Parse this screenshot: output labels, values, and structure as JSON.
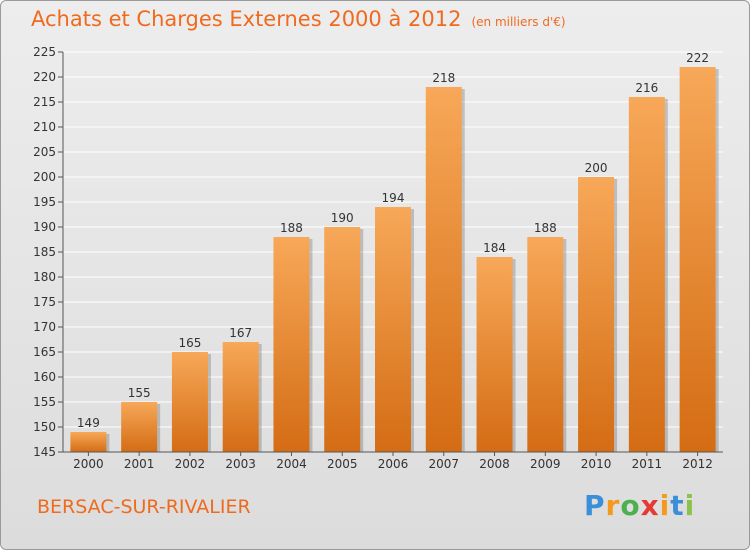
{
  "header": {
    "title": "Achats et Charges Externes 2000 à 2012",
    "subtitle": "(en milliers d'€)"
  },
  "footer": {
    "place": "BERSAC-SUR-RIVALIER",
    "logo": [
      "P",
      "r",
      "o",
      "x",
      "i",
      "t",
      "i"
    ]
  },
  "colors": {
    "accent": "#f06a1e",
    "bar_top": "#f7a858",
    "bar_bottom": "#d46c14",
    "logo": [
      "#3a8fd8",
      "#f39a1e",
      "#4caf50",
      "#e53935",
      "#f39a1e",
      "#3a8fd8",
      "#8bc34a"
    ]
  },
  "chart_data": {
    "type": "bar",
    "title": "Achats et Charges Externes 2000 à 2012",
    "subtitle": "(en milliers d'€)",
    "xlabel": "",
    "ylabel": "",
    "categories": [
      "2000",
      "2001",
      "2002",
      "2003",
      "2004",
      "2005",
      "2006",
      "2007",
      "2008",
      "2009",
      "2010",
      "2011",
      "2012"
    ],
    "values": [
      149,
      155,
      165,
      167,
      188,
      190,
      194,
      218,
      184,
      188,
      200,
      216,
      222
    ],
    "ylim": [
      145,
      225
    ],
    "yticks": [
      145,
      150,
      155,
      160,
      165,
      170,
      175,
      180,
      185,
      190,
      195,
      200,
      205,
      210,
      215,
      220,
      225
    ],
    "grid": true,
    "data_labels": true
  }
}
